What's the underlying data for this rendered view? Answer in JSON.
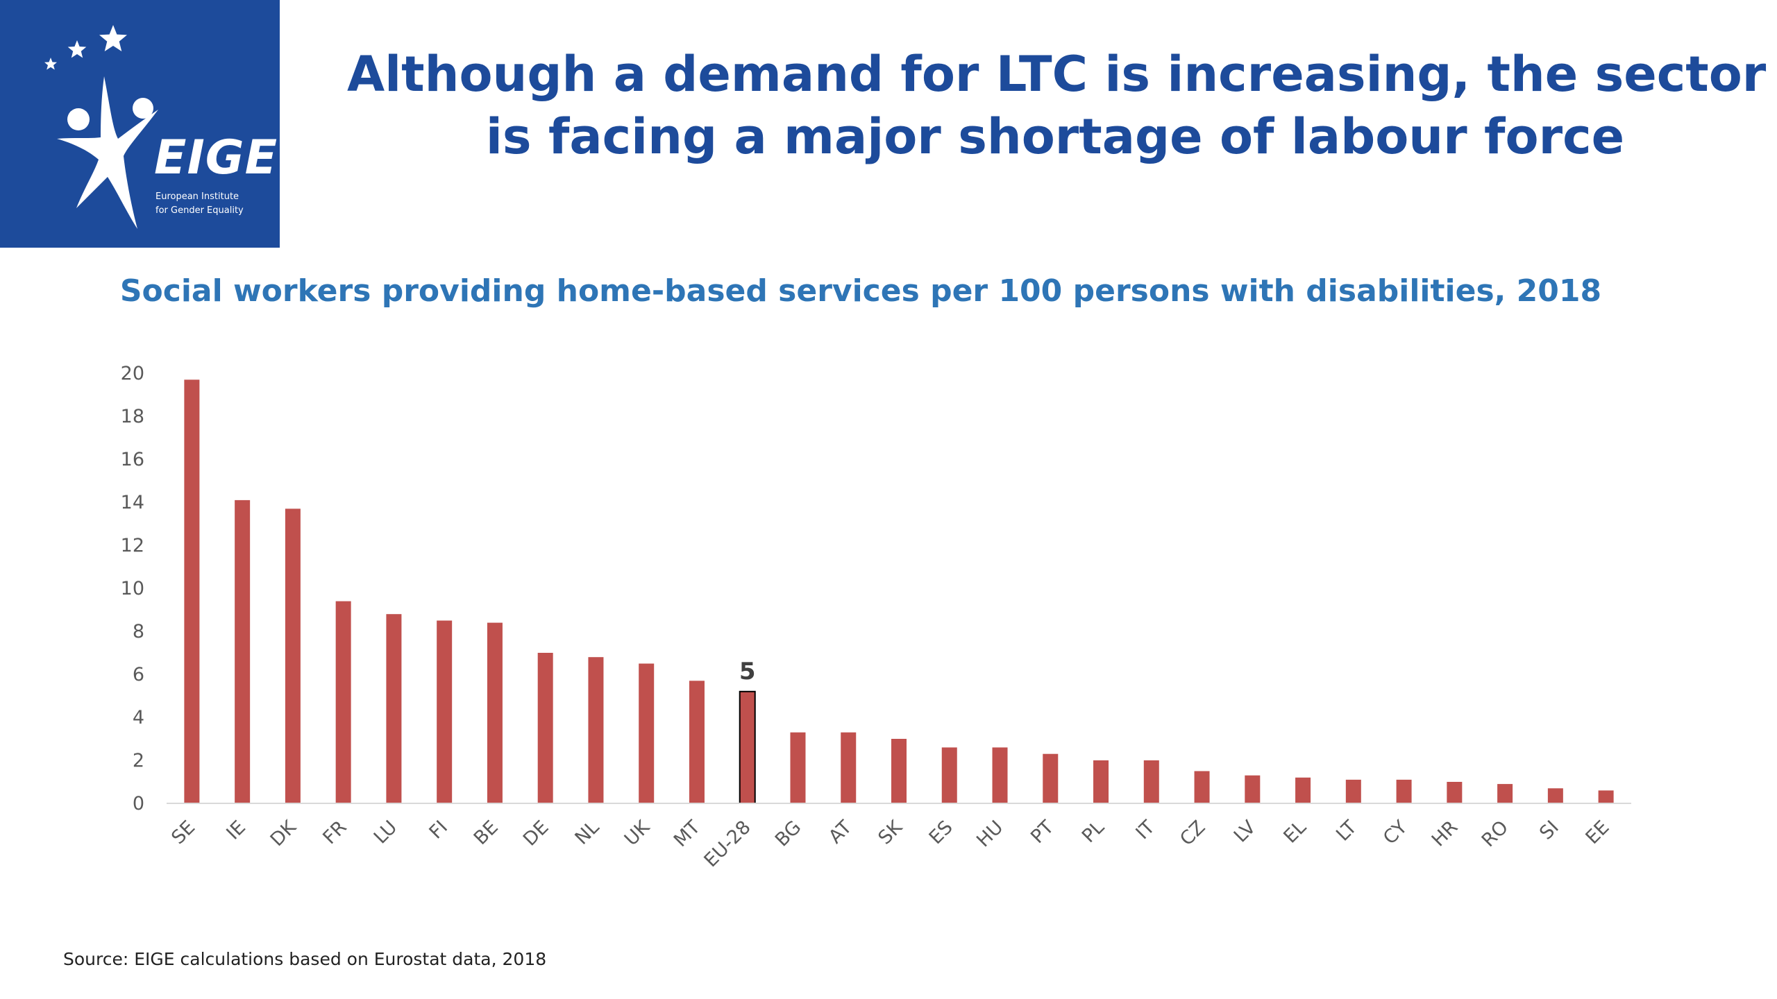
{
  "logo": {
    "wordmark": "EIGE",
    "subtitle_line1": "European Institute",
    "subtitle_line2": "for Gender Equality",
    "background_color": "#1d4b9b",
    "icon": "eige-star-figure-logo"
  },
  "headline": {
    "line1": "Although a demand for LTC is increasing, the sector",
    "line2": "is facing a major shortage of labour force"
  },
  "source": "Source: EIGE calculations based on Eurostat data, 2018",
  "colors": {
    "bar": "#c0504d",
    "highlight_bar": "#c0504d",
    "highlight_outline": "#000000",
    "title": "#1d4b9b",
    "chart_title": "#2e75b6"
  },
  "chart_data": {
    "type": "bar",
    "title": "Social workers providing home-based services per 100 persons with disabilities, 2018",
    "xlabel": "",
    "ylabel": "",
    "ylim": [
      0,
      20
    ],
    "yticks": [
      0,
      2,
      4,
      6,
      8,
      10,
      12,
      14,
      16,
      18,
      20
    ],
    "grid": false,
    "categories": [
      "SE",
      "IE",
      "DK",
      "FR",
      "LU",
      "FI",
      "BE",
      "DE",
      "NL",
      "UK",
      "MT",
      "EU-28",
      "BG",
      "AT",
      "SK",
      "ES",
      "HU",
      "PT",
      "PL",
      "IT",
      "CZ",
      "LV",
      "EL",
      "LT",
      "CY",
      "HR",
      "RO",
      "SI",
      "EE"
    ],
    "values": [
      19.7,
      14.1,
      13.7,
      9.4,
      8.8,
      8.5,
      8.4,
      7.0,
      6.8,
      6.5,
      5.7,
      5.2,
      3.3,
      3.3,
      3.0,
      2.6,
      2.6,
      2.3,
      2.0,
      2.0,
      1.5,
      1.3,
      1.2,
      1.1,
      1.1,
      1.0,
      0.9,
      0.7,
      0.6
    ],
    "highlight": {
      "category": "EU-28",
      "label": "5"
    }
  }
}
